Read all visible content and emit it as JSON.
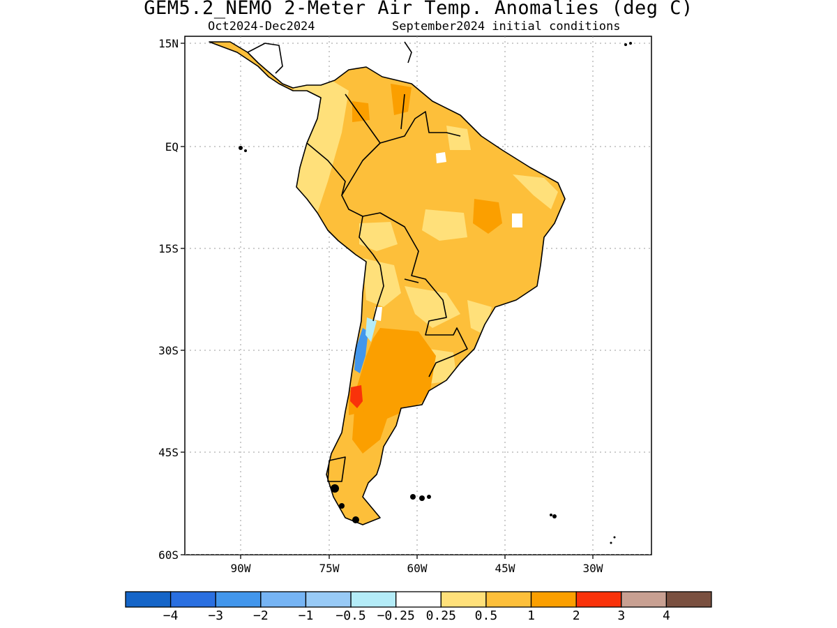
{
  "title": "GEM5.2_NEMO 2-Meter Air Temp. Anomalies (deg C)",
  "period": "Oct2024-Dec2024",
  "init": "September2024 initial conditions",
  "lat_labels": [
    "15N",
    "EQ",
    "15S",
    "30S",
    "45S",
    "60S"
  ],
  "lon_labels": [
    "90W",
    "75W",
    "60W",
    "45W",
    "30W"
  ],
  "colorbar": {
    "colors": [
      "#1565c8",
      "#2a6fe0",
      "#4296ec",
      "#76b4f4",
      "#98caf6",
      "#b4ecf8",
      "#ffffff",
      "#ffe07a",
      "#fdbf3a",
      "#fb9f00",
      "#f9320a",
      "#c8a092",
      "#7a5040"
    ],
    "labels": [
      "-4",
      "-3",
      "-2",
      "-1",
      "-0.5",
      "-0.25",
      "0.25",
      "0.5",
      "1",
      "2",
      "3",
      "4"
    ]
  },
  "map": {
    "extent": {
      "lon_min": -100,
      "lon_max": -20,
      "lat_min": -60,
      "lat_max": 15
    },
    "gridlines": "dotted",
    "land_fill": "#fdbf3a",
    "anomaly_colors": {
      "light": "#ffe07a",
      "moderate": "#fdbf3a",
      "strong": "#fb9f00",
      "cold": "#4296ec",
      "hot": "#f9320a"
    }
  }
}
